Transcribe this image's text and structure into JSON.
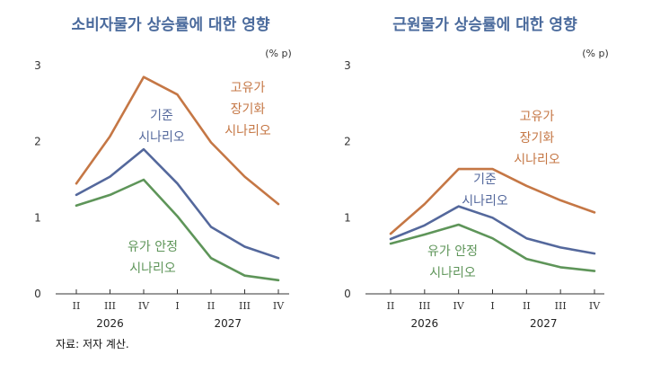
{
  "source": "자료: 저자 계산.",
  "colors": {
    "base": "#54689c",
    "high_oil": "#c57745",
    "stable_oil": "#5e9559"
  },
  "chart_data": [
    {
      "type": "line",
      "title": "소비자물가 상승률에 대한 영향",
      "unit": "(% p)",
      "ylim": [
        0,
        3
      ],
      "yticks": [
        "0",
        "1",
        "2",
        "3"
      ],
      "x": [
        "II",
        "III",
        "IV",
        "I",
        "II",
        "III",
        "IV"
      ],
      "year_labels": [
        "2026",
        "2027"
      ],
      "grid": false,
      "series": [
        {
          "key": "high_oil",
          "label_lines": [
            "고유가",
            "장기화",
            "시나리오"
          ],
          "values": [
            1.45,
            2.07,
            2.85,
            2.62,
            1.99,
            1.54,
            1.18
          ]
        },
        {
          "key": "base",
          "label_lines": [
            "기준",
            "시나리오"
          ],
          "values": [
            1.3,
            1.54,
            1.9,
            1.45,
            0.88,
            0.62,
            0.47
          ]
        },
        {
          "key": "stable_oil",
          "label_lines": [
            "유가 안정",
            "시나리오"
          ],
          "values": [
            1.16,
            1.3,
            1.5,
            1.02,
            0.47,
            0.24,
            0.18
          ]
        }
      ]
    },
    {
      "type": "line",
      "title": "근원물가 상승률에 대한 영향",
      "unit": "(% p)",
      "ylim": [
        0,
        3
      ],
      "yticks": [
        "0",
        "1",
        "2",
        "3"
      ],
      "x": [
        "II",
        "III",
        "IV",
        "I",
        "II",
        "III",
        "IV"
      ],
      "year_labels": [
        "2026",
        "2027"
      ],
      "grid": false,
      "series": [
        {
          "key": "high_oil",
          "label_lines": [
            "고유가",
            "장기화",
            "시나리오"
          ],
          "values": [
            0.79,
            1.18,
            1.64,
            1.64,
            1.42,
            1.23,
            1.07
          ]
        },
        {
          "key": "base",
          "label_lines": [
            "기준",
            "시나리오"
          ],
          "values": [
            0.72,
            0.9,
            1.15,
            1.0,
            0.73,
            0.61,
            0.53
          ]
        },
        {
          "key": "stable_oil",
          "label_lines": [
            "유가 안정",
            "시나리오"
          ],
          "values": [
            0.66,
            0.78,
            0.91,
            0.73,
            0.46,
            0.35,
            0.3
          ]
        }
      ]
    }
  ]
}
